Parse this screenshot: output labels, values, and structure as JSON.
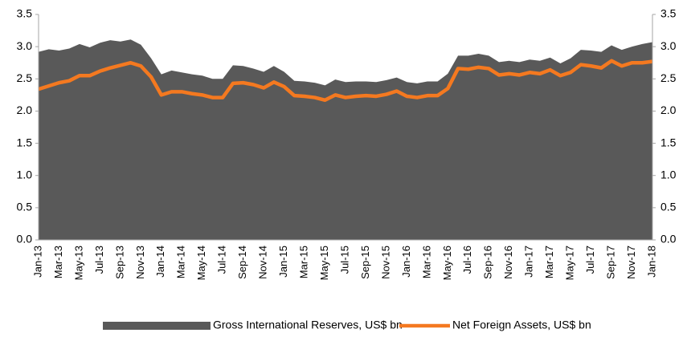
{
  "chart_data": {
    "type": "area-line",
    "categories": [
      "Jan-13",
      null,
      "Mar-13",
      null,
      "May-13",
      null,
      "Jul-13",
      null,
      "Sep-13",
      null,
      "Nov-13",
      null,
      "Jan-14",
      null,
      "Mar-14",
      null,
      "May-14",
      null,
      "Jul-14",
      null,
      "Sep-14",
      null,
      "Nov-14",
      null,
      "Jan-15",
      null,
      "Mar-15",
      null,
      "May-15",
      null,
      "Jul-15",
      null,
      "Sep-15",
      null,
      "Nov-15",
      null,
      "Jan-16",
      null,
      "Mar-16",
      null,
      "May-16",
      null,
      "Jul-16",
      null,
      "Sep-16",
      null,
      "Nov-16",
      null,
      "Jan-17",
      null,
      "Mar-17",
      null,
      "May-17",
      null,
      "Jul-17",
      null,
      "Sep-17",
      null,
      "Nov-17",
      null,
      "Jan-18"
    ],
    "series": [
      {
        "name": "Gross International Reserves, US$ bn",
        "color": "#595959",
        "kind": "area",
        "values": [
          2.92,
          2.96,
          2.94,
          2.97,
          3.04,
          2.99,
          3.06,
          3.1,
          3.08,
          3.11,
          3.03,
          2.82,
          2.57,
          2.63,
          2.6,
          2.57,
          2.55,
          2.5,
          2.5,
          2.71,
          2.7,
          2.66,
          2.61,
          2.7,
          2.61,
          2.47,
          2.46,
          2.44,
          2.4,
          2.49,
          2.45,
          2.46,
          2.46,
          2.45,
          2.48,
          2.52,
          2.45,
          2.43,
          2.46,
          2.46,
          2.58,
          2.86,
          2.86,
          2.89,
          2.86,
          2.76,
          2.78,
          2.76,
          2.8,
          2.78,
          2.83,
          2.74,
          2.82,
          2.95,
          2.94,
          2.92,
          3.02,
          2.95,
          3.0,
          3.04,
          3.07
        ]
      },
      {
        "name": "Net Foreign Assets, US$ bn",
        "color": "#f47920",
        "kind": "line",
        "axis": "y2",
        "values": [
          2.34,
          2.39,
          2.44,
          2.47,
          2.55,
          2.55,
          2.62,
          2.67,
          2.71,
          2.75,
          2.7,
          2.53,
          2.25,
          2.3,
          2.3,
          2.27,
          2.25,
          2.21,
          2.21,
          2.43,
          2.44,
          2.41,
          2.36,
          2.45,
          2.38,
          2.24,
          2.23,
          2.21,
          2.17,
          2.25,
          2.21,
          2.23,
          2.24,
          2.23,
          2.26,
          2.31,
          2.23,
          2.21,
          2.24,
          2.24,
          2.35,
          2.66,
          2.65,
          2.68,
          2.66,
          2.56,
          2.58,
          2.56,
          2.6,
          2.58,
          2.64,
          2.55,
          2.6,
          2.72,
          2.7,
          2.67,
          2.78,
          2.7,
          2.75,
          2.75,
          2.77
        ]
      }
    ],
    "ylim": [
      0,
      3.5
    ],
    "yticks": [
      {
        "value": 0,
        "label": "0.0"
      },
      {
        "value": 0.5,
        "label": "0.5"
      },
      {
        "value": 1,
        "label": "1.0"
      },
      {
        "value": 1.5,
        "label": "1.5"
      },
      {
        "value": 2,
        "label": "2.0"
      },
      {
        "value": 2.5,
        "label": "2.5"
      },
      {
        "value": 3,
        "label": "3.0"
      },
      {
        "value": 3.5,
        "label": "3.5"
      }
    ],
    "y2lim": [
      0,
      3.5
    ],
    "y2ticks": [
      {
        "value": 0,
        "label": "0.0"
      },
      {
        "value": 0.5,
        "label": "0.5"
      },
      {
        "value": 1,
        "label": "1.0"
      },
      {
        "value": 1.5,
        "label": "1.5"
      },
      {
        "value": 2,
        "label": "2.0"
      },
      {
        "value": 2.5,
        "label": "2.5"
      },
      {
        "value": 3,
        "label": "3.0"
      },
      {
        "value": 3.5,
        "label": "3.5"
      }
    ],
    "grid": false,
    "legend": "bottom"
  }
}
